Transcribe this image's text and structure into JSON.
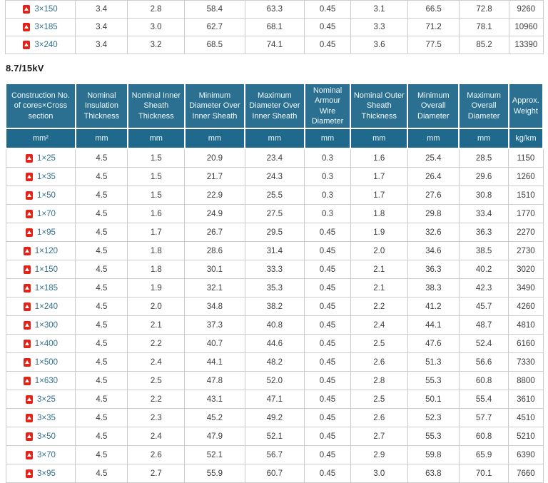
{
  "section": {
    "title": "8.7/15kV"
  },
  "colors": {
    "header_bg": "#2b7090",
    "units_bg": "#1f6a8c",
    "link": "#31708f",
    "pdf_red": "#e2231a",
    "border": "#cccccc"
  },
  "top_table": {
    "rows": [
      {
        "size": "3×150",
        "values": [
          "3.4",
          "2.8",
          "58.4",
          "63.3",
          "0.45",
          "3.1",
          "66.5",
          "72.8",
          "9260"
        ]
      },
      {
        "size": "3×185",
        "values": [
          "3.4",
          "3.0",
          "62.7",
          "68.1",
          "0.45",
          "3.3",
          "71.2",
          "78.1",
          "10960"
        ]
      },
      {
        "size": "3×240",
        "values": [
          "3.4",
          "3.2",
          "68.5",
          "74.1",
          "0.45",
          "3.6",
          "77.5",
          "85.2",
          "13390"
        ]
      }
    ]
  },
  "spec_table": {
    "headers": [
      "Construction No. of cores×Cross section",
      "Nominal Insulation Thickness",
      "Nominal Inner Sheath Thickness",
      "Minimum Diameter Over Inner Sheath",
      "Maximum Diameter Over Inner Sheath",
      "Nominal Armour Wire Diameter",
      "Nominal Outer Sheath Thickness",
      "Minimum Overall Diameter",
      "Maximum Overall Diameter",
      "Approx. Weight"
    ],
    "units": [
      "mm²",
      "mm",
      "mm",
      "mm",
      "mm",
      "mm",
      "mm",
      "mm",
      "mm",
      "kg/km"
    ],
    "rows": [
      {
        "size": "1×25",
        "values": [
          "4.5",
          "1.5",
          "20.9",
          "23.4",
          "0.3",
          "1.6",
          "25.4",
          "28.5",
          "1150"
        ]
      },
      {
        "size": "1×35",
        "values": [
          "4.5",
          "1.5",
          "21.7",
          "24.3",
          "0.3",
          "1.7",
          "26.4",
          "29.6",
          "1260"
        ]
      },
      {
        "size": "1×50",
        "values": [
          "4.5",
          "1.5",
          "22.9",
          "25.5",
          "0.3",
          "1.7",
          "27.6",
          "30.8",
          "1510"
        ]
      },
      {
        "size": "1×70",
        "values": [
          "4.5",
          "1.6",
          "24.9",
          "27.5",
          "0.3",
          "1.8",
          "29.8",
          "33.4",
          "1770"
        ]
      },
      {
        "size": "1×95",
        "values": [
          "4.5",
          "1.7",
          "26.7",
          "29.5",
          "0.45",
          "1.9",
          "32.6",
          "36.3",
          "2270"
        ]
      },
      {
        "size": "1×120",
        "values": [
          "4.5",
          "1.8",
          "28.6",
          "31.4",
          "0.45",
          "2.0",
          "34.6",
          "38.5",
          "2730"
        ]
      },
      {
        "size": "1×150",
        "values": [
          "4.5",
          "1.8",
          "30.1",
          "33.3",
          "0.45",
          "2.1",
          "36.3",
          "40.2",
          "3020"
        ]
      },
      {
        "size": "1×185",
        "values": [
          "4.5",
          "1.9",
          "32.1",
          "35.3",
          "0.45",
          "2.1",
          "38.3",
          "42.3",
          "3490"
        ]
      },
      {
        "size": "1×240",
        "values": [
          "4.5",
          "2.0",
          "34.8",
          "38.2",
          "0.45",
          "2.2",
          "41.2",
          "45.7",
          "4260"
        ]
      },
      {
        "size": "1×300",
        "values": [
          "4.5",
          "2.1",
          "37.3",
          "40.8",
          "0.45",
          "2.4",
          "44.1",
          "48.7",
          "4810"
        ]
      },
      {
        "size": "1×400",
        "values": [
          "4.5",
          "2.2",
          "40.7",
          "44.6",
          "0.45",
          "2.5",
          "47.6",
          "52.4",
          "6160"
        ]
      },
      {
        "size": "1×500",
        "values": [
          "4.5",
          "2.4",
          "44.1",
          "48.2",
          "0.45",
          "2.6",
          "51.3",
          "56.6",
          "7330"
        ]
      },
      {
        "size": "1×630",
        "values": [
          "4.5",
          "2.5",
          "47.8",
          "52.0",
          "0.45",
          "2.8",
          "55.3",
          "60.8",
          "8800"
        ]
      },
      {
        "size": "3×25",
        "values": [
          "4.5",
          "2.2",
          "43.1",
          "47.1",
          "0.45",
          "2.5",
          "50.1",
          "55.4",
          "3610"
        ]
      },
      {
        "size": "3×35",
        "values": [
          "4.5",
          "2.3",
          "45.2",
          "49.2",
          "0.45",
          "2.6",
          "52.3",
          "57.7",
          "4510"
        ]
      },
      {
        "size": "3×50",
        "values": [
          "4.5",
          "2.4",
          "47.9",
          "52.1",
          "0.45",
          "2.7",
          "55.3",
          "60.8",
          "5210"
        ]
      },
      {
        "size": "3×70",
        "values": [
          "4.5",
          "2.6",
          "52.1",
          "56.7",
          "0.45",
          "2.9",
          "59.8",
          "65.9",
          "6390"
        ]
      },
      {
        "size": "3×95",
        "values": [
          "4.5",
          "2.7",
          "55.9",
          "60.7",
          "0.45",
          "3.0",
          "63.8",
          "70.1",
          "7660"
        ]
      }
    ]
  }
}
